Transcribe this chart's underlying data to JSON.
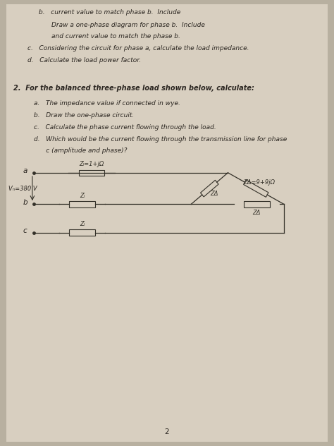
{
  "bg_color": "#b8b0a0",
  "paper_color": "#d8cfc0",
  "paper_color2": "#cfc8b8",
  "text_color": "#2a2520",
  "line_color": "#333028",
  "top_lines": [
    [
      "b.",
      "  current value to match phase b. Include"
    ],
    [
      "",
      "  Draw a one-phase diagram for phase b. Include"
    ],
    [
      "",
      "  and current value to match the phase b."
    ],
    [
      "c.",
      "  Considering the circuit for phase a, calculate the load impedance."
    ],
    [
      "d.",
      "  Calculate the load power factor."
    ]
  ],
  "q2_header": "2.  For the balanced three-phase load shown below, calculate:",
  "q2_items": [
    "a.   The impedance value if connected in wye.",
    "b.   Draw the one-phase circuit.",
    "c.   Calculate the phase current flowing through the load.",
    "d.   Which would be the current flowing through the transmission line for phase",
    "      c (amplitude and phase)?"
  ],
  "label_a": "a",
  "label_b": "b",
  "label_c": "c",
  "voltage_label": "Vₙ=380 V",
  "zl_top_label": "Zₗ=1+jΩ",
  "zl_label": "Zₗ",
  "zdelta_label": "ZΔ",
  "zdelta_value_label": "ZΔ=9+9jΩ",
  "page_number": "2",
  "fs_text": 7.0,
  "fs_small": 6.5
}
